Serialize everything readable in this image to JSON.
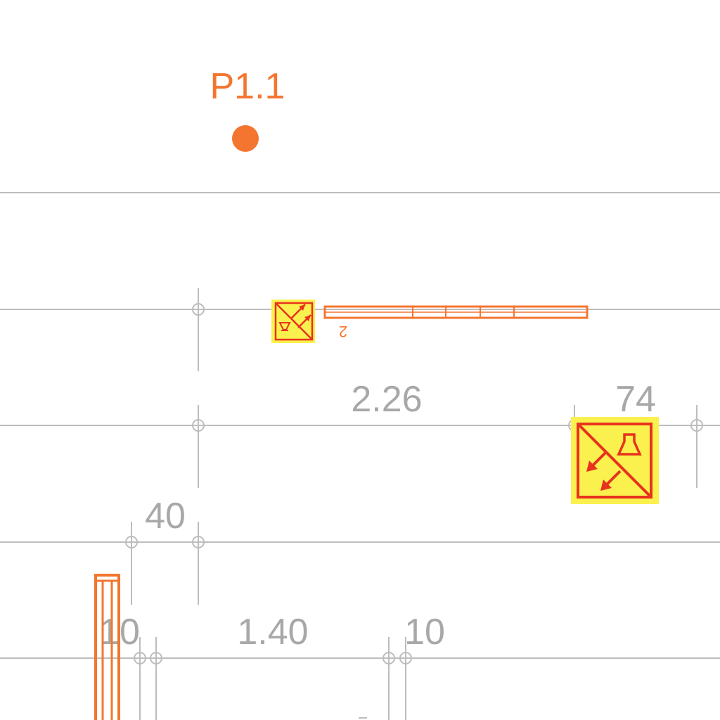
{
  "drawing": {
    "point_label": "P1.1",
    "small_label": "2",
    "dimensions": {
      "d1": "2.26",
      "d2": "74",
      "d3": "40",
      "d4": "10",
      "d5": "1.40",
      "d6": "10"
    },
    "colors": {
      "accent": "#f47530",
      "symbol_fill": "#fbf14e",
      "symbol_stroke": "#e8321e",
      "grid": "#bdbdbd",
      "dimension_text": "#a8a8a8"
    },
    "icons": {
      "symbol_small": "diagonal-split-arrows-icon",
      "symbol_large": "diagonal-split-arrows-icon"
    }
  }
}
